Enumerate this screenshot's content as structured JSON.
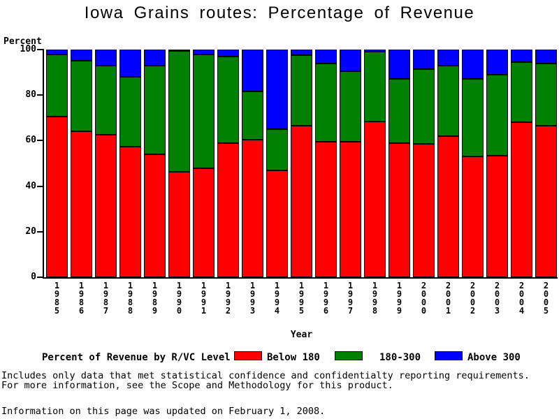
{
  "title": "Iowa Grains routes: Percentage of Revenue",
  "y_axis": {
    "label": "Percent",
    "ticks": [
      0,
      20,
      40,
      60,
      80,
      100
    ],
    "min": 0,
    "max": 100
  },
  "x_axis": {
    "label": "Year"
  },
  "legend": {
    "title": "Percent of Revenue by R/VC Level",
    "items": [
      {
        "label": "Below 180",
        "color": "#ff0000"
      },
      {
        "label": "180-300",
        "color": "#008000"
      },
      {
        "label": "Above 300",
        "color": "#0000ff"
      }
    ]
  },
  "footnotes": {
    "line1": "Includes only data that met statistical confidence and confidentialty reporting requirements.",
    "line2": "For more information, see the Scope and Methodology for this product.",
    "updated": "Information on this page was updated on February 1, 2008."
  },
  "chart_data": {
    "type": "bar",
    "stacked": true,
    "title": "Iowa Grains routes: Percentage of Revenue",
    "xlabel": "Year",
    "ylabel": "Percent",
    "ylim": [
      0,
      100
    ],
    "grid": false,
    "legend_position": "bottom",
    "categories": [
      "1985",
      "1986",
      "1987",
      "1988",
      "1989",
      "1990",
      "1991",
      "1992",
      "1993",
      "1994",
      "1995",
      "1996",
      "1997",
      "1998",
      "1999",
      "2000",
      "2001",
      "2002",
      "2003",
      "2004",
      "2005"
    ],
    "series": [
      {
        "name": "Below 180",
        "color": "#ff0000",
        "values": [
          70.5,
          64,
          62.5,
          57.5,
          54,
          46.5,
          48,
          59,
          60.5,
          47,
          66.5,
          59.5,
          59.5,
          68.5,
          59,
          58.5,
          62,
          53,
          53.5,
          68,
          66.5
        ]
      },
      {
        "name": "180-300",
        "color": "#008000",
        "values": [
          27.5,
          31,
          30.5,
          30.5,
          39,
          53,
          50,
          38,
          21,
          18,
          31,
          34.5,
          31,
          30.5,
          28,
          33,
          31,
          34,
          35.5,
          26.5,
          27.5
        ]
      },
      {
        "name": "Above 300",
        "color": "#0000ff",
        "values": [
          2,
          5,
          7,
          12,
          7,
          0.5,
          2,
          3,
          18.5,
          35,
          2.5,
          6,
          9.5,
          1,
          13,
          8.5,
          7,
          13,
          11,
          5.5,
          6
        ]
      }
    ]
  }
}
